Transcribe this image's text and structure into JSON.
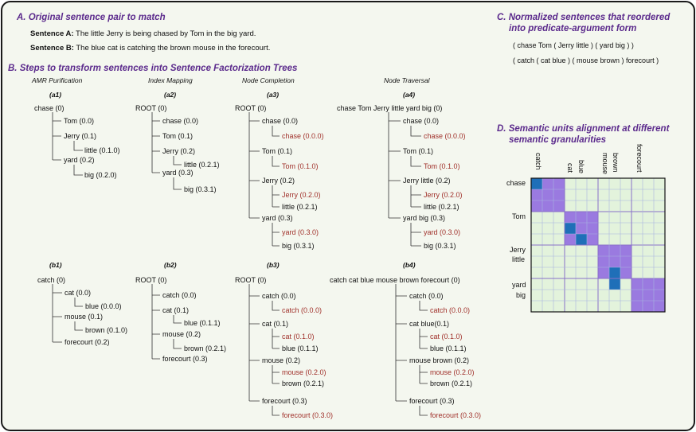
{
  "section_a": {
    "title": "A. Original sentence pair to match",
    "sentence_a_label": "Sentence A:",
    "sentence_a_text": "The little Jerry is being chased by Tom in the big yard.",
    "sentence_b_label": "Sentence B:",
    "sentence_b_text": "The blue cat is catching the brown mouse in the forecourt."
  },
  "section_b": {
    "title": "B. Steps to transform sentences into Sentence Factorization Trees",
    "columns": [
      "AMR Purification",
      "Index Mapping",
      "Node Completion",
      "Node Traversal"
    ],
    "panel_labels": [
      "(a1)",
      "(a2)",
      "(a3)",
      "(a4)",
      "(b1)",
      "(b2)",
      "(b3)",
      "(b4)"
    ]
  },
  "trees": {
    "a1": [
      "chase (0)",
      "Tom (0.0)",
      "Jerry (0.1)",
      "little (0.1.0)",
      "yard (0.2)",
      "big (0.2.0)"
    ],
    "a2": [
      "ROOT (0)",
      "chase (0.0)",
      "Tom (0.1)",
      "Jerry (0.2)",
      "little (0.2.1)",
      "yard (0.3)",
      "big (0.3.1)"
    ],
    "a3": [
      "ROOT (0)",
      "chase (0.0)",
      "chase (0.0.0)",
      "Tom (0.1)",
      "Tom (0.1.0)",
      "Jerry (0.2)",
      "Jerry (0.2.0)",
      "little (0.2.1)",
      "yard (0.3)",
      "yard (0.3.0)",
      "big (0.3.1)"
    ],
    "a4": [
      "chase Tom Jerry little yard big (0)",
      "chase (0.0)",
      "chase (0.0.0)",
      "Tom (0.1)",
      "Tom (0.1.0)",
      "Jerry little (0.2)",
      "Jerry (0.2.0)",
      "little (0.2.1)",
      "yard big (0.3)",
      "yard (0.3.0)",
      "big (0.3.1)"
    ],
    "b1": [
      "catch (0)",
      "cat (0.0)",
      "blue (0.0.0)",
      "mouse (0.1)",
      "brown (0.1.0)",
      "forecourt (0.2)"
    ],
    "b2": [
      "ROOT (0)",
      "catch (0.0)",
      "cat (0.1)",
      "blue (0.1.1)",
      "mouse (0.2)",
      "brown (0.2.1)",
      "forecourt (0.3)"
    ],
    "b3": [
      "ROOT (0)",
      "catch (0.0)",
      "catch (0.0.0)",
      "cat (0.1)",
      "cat (0.1.0)",
      "blue (0.1.1)",
      "mouse (0.2)",
      "mouse (0.2.0)",
      "brown (0.2.1)",
      "forecourt (0.3)",
      "forecourt (0.3.0)"
    ],
    "b4": [
      "catch cat blue mouse brown forecourt (0)",
      "catch (0.0)",
      "catch (0.0.0)",
      "cat blue(0.1)",
      "cat (0.1.0)",
      "blue (0.1.1)",
      "mouse brown (0.2)",
      "mouse (0.2.0)",
      "brown (0.2.1)",
      "forecourt (0.3)",
      "forecourt (0.3.0)"
    ]
  },
  "section_c": {
    "title_line1": "C. Normalized sentences that reordered",
    "title_line2": "into predicate-argument form",
    "norm_a": "( chase Tom ( Jerry little ) ( yard big ) )",
    "norm_b": "( catch ( cat blue ) ( mouse brown ) forecourt )"
  },
  "section_d": {
    "title_line1": "D. Semantic units alignment at different",
    "title_line2": "semantic granularities",
    "col_labels": [
      "catch",
      "cat",
      "blue",
      "mouse",
      "brown",
      "forecourt"
    ],
    "row_labels": [
      "chase",
      "Tom",
      "Jerry",
      "little",
      "yard",
      "big"
    ]
  },
  "colors": {
    "background": "#f4f7ef",
    "title": "#5b2a8c",
    "red_node": "#a0302a",
    "grid_cell": "#e3f3dc",
    "purple_block": "#9a7ae0",
    "blue_cell": "#1f6fb8"
  }
}
